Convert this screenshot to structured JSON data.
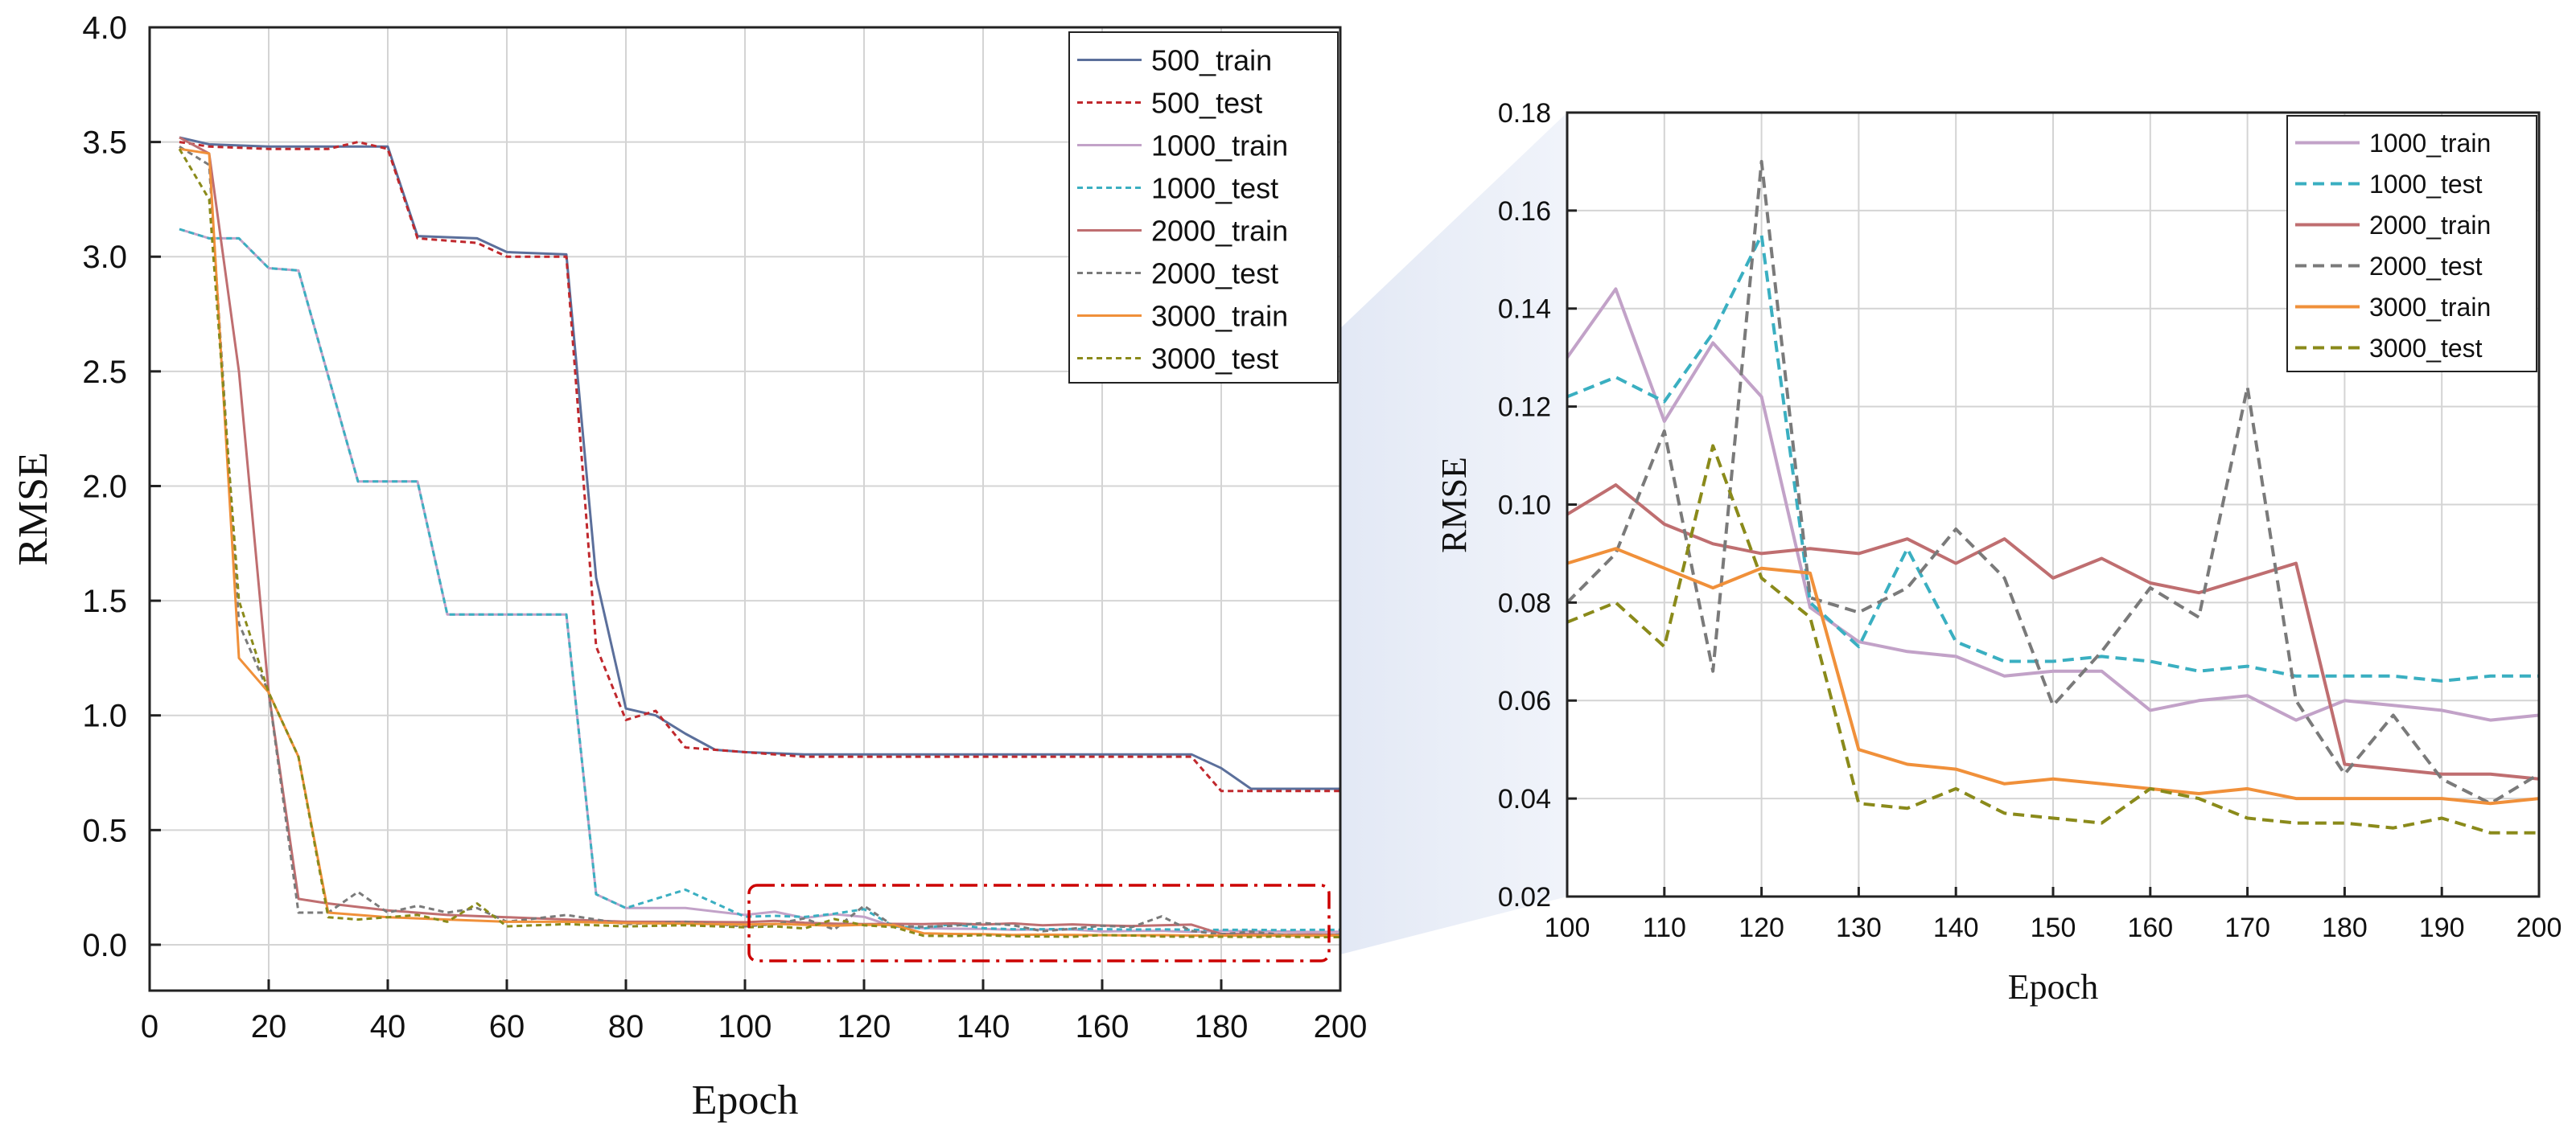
{
  "chart_data": [
    {
      "type": "line",
      "xlabel": "Epoch",
      "ylabel": "RMSE",
      "xlim": [
        0,
        200
      ],
      "ylim": [
        -0.2,
        4.0
      ],
      "xticks": [
        "0",
        "20",
        "40",
        "60",
        "80",
        "100",
        "120",
        "140",
        "160",
        "180",
        "200"
      ],
      "yticks": [
        "0.0",
        "0.5",
        "1.0",
        "1.5",
        "2.0",
        "2.5",
        "3.0",
        "3.5",
        "4.0"
      ],
      "grid": true,
      "legend_position": "top-right",
      "highlight_box": {
        "x": [
          101,
          199
        ],
        "y": [
          -0.09,
          0.25
        ],
        "color": "#cc0000",
        "style": "dash-dot"
      },
      "series": [
        {
          "name": "500_train",
          "color": "#5b6f9b",
          "dash": "solid",
          "x": [
            5,
            10,
            20,
            30,
            40,
            45,
            55,
            60,
            70,
            75,
            80,
            85,
            90,
            95,
            100,
            110,
            120,
            125,
            175,
            180,
            185,
            190,
            200
          ],
          "y": [
            3.52,
            3.49,
            3.48,
            3.48,
            3.48,
            3.09,
            3.08,
            3.02,
            3.01,
            1.6,
            1.03,
            1.0,
            0.92,
            0.85,
            0.84,
            0.83,
            0.83,
            0.83,
            0.83,
            0.77,
            0.68,
            0.68,
            0.68
          ]
        },
        {
          "name": "500_test",
          "color": "#c0282d",
          "dash": "dot",
          "x": [
            5,
            10,
            20,
            30,
            35,
            40,
            45,
            55,
            60,
            70,
            75,
            80,
            85,
            90,
            95,
            100,
            110,
            120,
            125,
            175,
            180,
            185,
            190,
            200
          ],
          "y": [
            3.5,
            3.48,
            3.47,
            3.47,
            3.5,
            3.47,
            3.08,
            3.06,
            3.0,
            3.0,
            1.3,
            0.98,
            1.02,
            0.86,
            0.85,
            0.84,
            0.82,
            0.82,
            0.82,
            0.82,
            0.67,
            0.67,
            0.67,
            0.67
          ]
        },
        {
          "name": "1000_train",
          "color": "#c2a2c8",
          "dash": "solid",
          "x": [
            5,
            10,
            15,
            20,
            25,
            35,
            45,
            50,
            70,
            75,
            80,
            90,
            100,
            105,
            110,
            115,
            120,
            125,
            130,
            135,
            140,
            145,
            150,
            155,
            160,
            165,
            170,
            175,
            180,
            185,
            190,
            195,
            200
          ],
          "y": [
            3.12,
            3.08,
            3.08,
            2.95,
            2.94,
            2.02,
            2.02,
            1.44,
            1.44,
            0.22,
            0.16,
            0.16,
            0.13,
            0.144,
            0.117,
            0.133,
            0.122,
            0.079,
            0.072,
            0.07,
            0.069,
            0.065,
            0.066,
            0.066,
            0.058,
            0.06,
            0.061,
            0.056,
            0.06,
            0.059,
            0.058,
            0.056,
            0.057
          ]
        },
        {
          "name": "1000_test",
          "color": "#3aafc1",
          "dash": "dot",
          "x": [
            5,
            10,
            15,
            20,
            25,
            35,
            45,
            50,
            70,
            75,
            80,
            90,
            100,
            105,
            110,
            115,
            120,
            125,
            130,
            135,
            140,
            145,
            150,
            155,
            160,
            165,
            170,
            175,
            180,
            185,
            190,
            195,
            200
          ],
          "y": [
            3.12,
            3.08,
            3.08,
            2.95,
            2.94,
            2.02,
            2.02,
            1.44,
            1.44,
            0.22,
            0.16,
            0.24,
            0.122,
            0.126,
            0.121,
            0.135,
            0.155,
            0.08,
            0.071,
            0.091,
            0.072,
            0.068,
            0.068,
            0.069,
            0.068,
            0.066,
            0.067,
            0.065,
            0.065,
            0.065,
            0.064,
            0.065,
            0.065
          ]
        },
        {
          "name": "2000_train",
          "color": "#bf6e70",
          "dash": "solid",
          "x": [
            5,
            10,
            15,
            20,
            25,
            30,
            40,
            50,
            60,
            70,
            80,
            90,
            100,
            105,
            110,
            115,
            120,
            125,
            130,
            135,
            140,
            145,
            150,
            155,
            160,
            165,
            170,
            175,
            180,
            185,
            190,
            195,
            200
          ],
          "y": [
            3.52,
            3.45,
            2.5,
            1.1,
            0.2,
            0.18,
            0.15,
            0.13,
            0.12,
            0.11,
            0.1,
            0.1,
            0.098,
            0.104,
            0.096,
            0.092,
            0.09,
            0.091,
            0.09,
            0.093,
            0.088,
            0.093,
            0.085,
            0.089,
            0.084,
            0.082,
            0.085,
            0.088,
            0.047,
            0.046,
            0.045,
            0.045,
            0.044
          ]
        },
        {
          "name": "2000_test",
          "color": "#7a7a7a",
          "dash": "dot",
          "x": [
            5,
            10,
            15,
            20,
            25,
            30,
            35,
            40,
            45,
            50,
            55,
            60,
            70,
            80,
            90,
            100,
            105,
            110,
            115,
            120,
            125,
            130,
            135,
            140,
            145,
            150,
            155,
            160,
            165,
            170,
            175,
            180,
            185,
            190,
            195,
            200
          ],
          "y": [
            3.48,
            3.4,
            1.4,
            1.1,
            0.14,
            0.14,
            0.23,
            0.14,
            0.17,
            0.14,
            0.16,
            0.1,
            0.13,
            0.09,
            0.1,
            0.08,
            0.09,
            0.115,
            0.066,
            0.17,
            0.081,
            0.078,
            0.083,
            0.095,
            0.085,
            0.059,
            0.07,
            0.083,
            0.077,
            0.124,
            0.06,
            0.045,
            0.057,
            0.044,
            0.039,
            0.045
          ]
        },
        {
          "name": "3000_train",
          "color": "#f0903a",
          "dash": "solid",
          "x": [
            5,
            10,
            15,
            20,
            25,
            30,
            40,
            50,
            60,
            70,
            80,
            90,
            100,
            105,
            110,
            115,
            120,
            125,
            130,
            135,
            140,
            145,
            150,
            155,
            160,
            165,
            170,
            175,
            180,
            185,
            190,
            195,
            200
          ],
          "y": [
            3.47,
            3.45,
            1.25,
            1.1,
            0.82,
            0.14,
            0.12,
            0.11,
            0.1,
            0.1,
            0.095,
            0.092,
            0.088,
            0.091,
            0.087,
            0.083,
            0.087,
            0.086,
            0.05,
            0.047,
            0.046,
            0.043,
            0.044,
            0.043,
            0.042,
            0.041,
            0.042,
            0.04,
            0.04,
            0.04,
            0.04,
            0.039,
            0.04
          ]
        },
        {
          "name": "3000_test",
          "color": "#8a8a1a",
          "dash": "dot",
          "x": [
            5,
            10,
            15,
            20,
            25,
            30,
            35,
            40,
            45,
            50,
            55,
            60,
            70,
            80,
            90,
            100,
            105,
            110,
            115,
            120,
            125,
            130,
            135,
            140,
            145,
            150,
            155,
            160,
            165,
            170,
            175,
            180,
            185,
            190,
            195,
            200
          ],
          "y": [
            3.47,
            3.25,
            1.5,
            1.1,
            0.82,
            0.12,
            0.11,
            0.12,
            0.13,
            0.1,
            0.18,
            0.08,
            0.09,
            0.08,
            0.085,
            0.076,
            0.08,
            0.071,
            0.112,
            0.085,
            0.077,
            0.039,
            0.038,
            0.042,
            0.037,
            0.036,
            0.035,
            0.042,
            0.04,
            0.036,
            0.035,
            0.035,
            0.034,
            0.036,
            0.033,
            0.033
          ]
        }
      ]
    },
    {
      "type": "line",
      "xlabel": "Epoch",
      "ylabel": "RMSE",
      "xlim": [
        100,
        200
      ],
      "ylim": [
        0.02,
        0.18
      ],
      "xticks": [
        "100",
        "110",
        "120",
        "130",
        "140",
        "150",
        "160",
        "170",
        "180",
        "190",
        "200"
      ],
      "yticks": [
        "0.02",
        "0.04",
        "0.06",
        "0.08",
        "0.10",
        "0.12",
        "0.14",
        "0.16",
        "0.18"
      ],
      "grid": true,
      "legend_position": "top-right",
      "series": [
        {
          "name": "1000_train",
          "color": "#c2a2c8",
          "dash": "solid",
          "x": [
            100,
            105,
            110,
            115,
            120,
            125,
            130,
            135,
            140,
            145,
            150,
            155,
            160,
            165,
            170,
            175,
            180,
            185,
            190,
            195,
            200
          ],
          "y": [
            0.13,
            0.144,
            0.117,
            0.133,
            0.122,
            0.079,
            0.072,
            0.07,
            0.069,
            0.065,
            0.066,
            0.066,
            0.058,
            0.06,
            0.061,
            0.056,
            0.06,
            0.059,
            0.058,
            0.056,
            0.057
          ]
        },
        {
          "name": "1000_test",
          "color": "#3aafc1",
          "dash": "dash",
          "x": [
            100,
            105,
            110,
            115,
            120,
            125,
            130,
            135,
            140,
            145,
            150,
            155,
            160,
            165,
            170,
            175,
            180,
            185,
            190,
            195,
            200
          ],
          "y": [
            0.122,
            0.126,
            0.121,
            0.135,
            0.155,
            0.08,
            0.071,
            0.091,
            0.072,
            0.068,
            0.068,
            0.069,
            0.068,
            0.066,
            0.067,
            0.065,
            0.065,
            0.065,
            0.064,
            0.065,
            0.065
          ]
        },
        {
          "name": "2000_train",
          "color": "#bf6e70",
          "dash": "solid",
          "x": [
            100,
            105,
            110,
            115,
            120,
            125,
            130,
            135,
            140,
            145,
            150,
            155,
            160,
            165,
            170,
            175,
            180,
            185,
            190,
            195,
            200
          ],
          "y": [
            0.098,
            0.104,
            0.096,
            0.092,
            0.09,
            0.091,
            0.09,
            0.093,
            0.088,
            0.093,
            0.085,
            0.089,
            0.084,
            0.082,
            0.085,
            0.088,
            0.047,
            0.046,
            0.045,
            0.045,
            0.044
          ]
        },
        {
          "name": "2000_test",
          "color": "#7a7a7a",
          "dash": "dash",
          "x": [
            100,
            105,
            110,
            115,
            120,
            125,
            130,
            135,
            140,
            145,
            150,
            155,
            160,
            165,
            170,
            175,
            180,
            185,
            190,
            195,
            200
          ],
          "y": [
            0.08,
            0.09,
            0.115,
            0.066,
            0.17,
            0.081,
            0.078,
            0.083,
            0.095,
            0.085,
            0.059,
            0.07,
            0.083,
            0.077,
            0.124,
            0.06,
            0.045,
            0.057,
            0.044,
            0.039,
            0.045
          ]
        },
        {
          "name": "3000_train",
          "color": "#f0903a",
          "dash": "solid",
          "x": [
            100,
            105,
            110,
            115,
            120,
            125,
            130,
            135,
            140,
            145,
            150,
            155,
            160,
            165,
            170,
            175,
            180,
            185,
            190,
            195,
            200
          ],
          "y": [
            0.088,
            0.091,
            0.087,
            0.083,
            0.087,
            0.086,
            0.05,
            0.047,
            0.046,
            0.043,
            0.044,
            0.043,
            0.042,
            0.041,
            0.042,
            0.04,
            0.04,
            0.04,
            0.04,
            0.039,
            0.04
          ]
        },
        {
          "name": "3000_test",
          "color": "#8a8a1a",
          "dash": "dash",
          "x": [
            100,
            105,
            110,
            115,
            120,
            125,
            130,
            135,
            140,
            145,
            150,
            155,
            160,
            165,
            170,
            175,
            180,
            185,
            190,
            195,
            200
          ],
          "y": [
            0.076,
            0.08,
            0.071,
            0.112,
            0.085,
            0.077,
            0.039,
            0.038,
            0.042,
            0.037,
            0.036,
            0.035,
            0.042,
            0.04,
            0.036,
            0.035,
            0.035,
            0.034,
            0.036,
            0.033,
            0.033
          ]
        }
      ]
    }
  ]
}
